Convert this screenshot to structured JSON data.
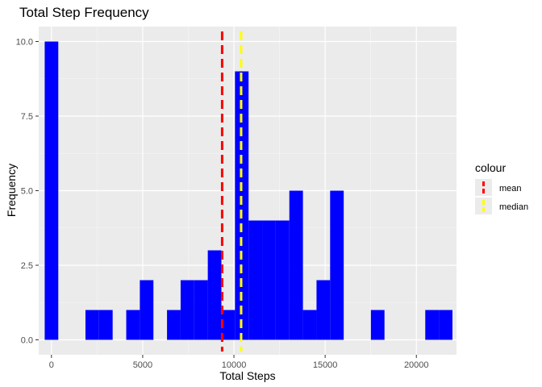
{
  "chart_data": {
    "type": "bar",
    "title": "Total Step Frequency",
    "xlabel": "Total Steps",
    "ylabel": "Frequency",
    "xlim": [
      -700,
      22200
    ],
    "ylim": [
      -0.5,
      10.5
    ],
    "x_ticks": [
      0,
      5000,
      10000,
      15000,
      20000
    ],
    "x_tick_labels": [
      "0",
      "5000",
      "10000",
      "15000",
      "20000"
    ],
    "y_ticks": [
      0,
      2.5,
      5,
      7.5,
      10
    ],
    "y_tick_labels": [
      "0.0",
      "2.5",
      "5.0",
      "7.5",
      "10.0"
    ],
    "bin_width": 745,
    "bins": [
      {
        "x": 0,
        "count": 10
      },
      {
        "x": 2235,
        "count": 1
      },
      {
        "x": 2980,
        "count": 1
      },
      {
        "x": 4470,
        "count": 1
      },
      {
        "x": 5215,
        "count": 2
      },
      {
        "x": 6705,
        "count": 1
      },
      {
        "x": 7450,
        "count": 2
      },
      {
        "x": 8195,
        "count": 2
      },
      {
        "x": 8940,
        "count": 3
      },
      {
        "x": 9685,
        "count": 1
      },
      {
        "x": 10430,
        "count": 9
      },
      {
        "x": 11175,
        "count": 4
      },
      {
        "x": 11920,
        "count": 4
      },
      {
        "x": 12665,
        "count": 4
      },
      {
        "x": 13410,
        "count": 5
      },
      {
        "x": 14155,
        "count": 1
      },
      {
        "x": 14900,
        "count": 2
      },
      {
        "x": 15645,
        "count": 5
      },
      {
        "x": 17880,
        "count": 1
      },
      {
        "x": 20860,
        "count": 1
      },
      {
        "x": 21605,
        "count": 1
      }
    ],
    "reference_lines": [
      {
        "name": "mean",
        "x": 9354,
        "color": "#ff0000"
      },
      {
        "name": "median",
        "x": 10395,
        "color": "#ffff00"
      }
    ],
    "legend": {
      "title": "colour",
      "position": "right",
      "items": [
        "mean",
        "median"
      ]
    },
    "bar_color": "#0000ff",
    "panel_background": "#ebebeb",
    "grid": true
  }
}
